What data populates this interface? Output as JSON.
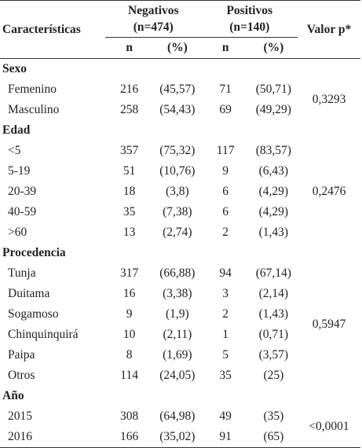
{
  "header": {
    "characteristics": "Características",
    "negatives_title": "Negativos",
    "negatives_count": "(n=474)",
    "positives_title": "Positivos",
    "positives_count": "(n=140)",
    "p_value": "Valor p*",
    "n_label": "n",
    "pct_label": "(%)"
  },
  "groups": [
    {
      "title": "Sexo",
      "p_value": "0,3293",
      "rows": [
        {
          "label": "Femenino",
          "neg_n": "216",
          "neg_pct": "(45,57)",
          "pos_n": "71",
          "pos_pct": "(50,71)"
        },
        {
          "label": "Masculino",
          "neg_n": "258",
          "neg_pct": "(54,43)",
          "pos_n": "69",
          "pos_pct": "(49,29)"
        }
      ]
    },
    {
      "title": "Edad",
      "p_value": "0,2476",
      "rows": [
        {
          "label": "<5",
          "neg_n": "357",
          "neg_pct": "(75,32)",
          "pos_n": "117",
          "pos_pct": "(83,57)"
        },
        {
          "label": "5-19",
          "neg_n": "51",
          "neg_pct": "(10,76)",
          "pos_n": "9",
          "pos_pct": "(6,43)"
        },
        {
          "label": "20-39",
          "neg_n": "18",
          "neg_pct": "(3,8)",
          "pos_n": "6",
          "pos_pct": "(4,29)"
        },
        {
          "label": "40-59",
          "neg_n": "35",
          "neg_pct": "(7,38)",
          "pos_n": "6",
          "pos_pct": "(4,29)"
        },
        {
          "label": ">60",
          "neg_n": "13",
          "neg_pct": "(2,74)",
          "pos_n": "2",
          "pos_pct": "(1,43)"
        }
      ]
    },
    {
      "title": "Procedencia",
      "p_value": "0,5947",
      "rows": [
        {
          "label": "Tunja",
          "neg_n": "317",
          "neg_pct": "(66,88)",
          "pos_n": "94",
          "pos_pct": "(67,14)"
        },
        {
          "label": "Duitama",
          "neg_n": "16",
          "neg_pct": "(3,38)",
          "pos_n": "3",
          "pos_pct": "(2,14)"
        },
        {
          "label": "Sogamoso",
          "neg_n": "9",
          "neg_pct": "(1,9)",
          "pos_n": "2",
          "pos_pct": "(1,43)"
        },
        {
          "label": "Chinquinquirá",
          "neg_n": "10",
          "neg_pct": "(2,11)",
          "pos_n": "1",
          "pos_pct": "(0,71)"
        },
        {
          "label": "Paipa",
          "neg_n": "8",
          "neg_pct": "(1,69)",
          "pos_n": "5",
          "pos_pct": "(3,57)"
        },
        {
          "label": "Otros",
          "neg_n": "114",
          "neg_pct": "(24,05)",
          "pos_n": "35",
          "pos_pct": "(25)"
        }
      ]
    },
    {
      "title": "Año",
      "p_value": "<0,0001",
      "rows": [
        {
          "label": "2015",
          "neg_n": "308",
          "neg_pct": "(64,98)",
          "pos_n": "49",
          "pos_pct": "(35)"
        },
        {
          "label": "2016",
          "neg_n": "166",
          "neg_pct": "(35,02)",
          "pos_n": "91",
          "pos_pct": "(65)"
        }
      ]
    }
  ]
}
